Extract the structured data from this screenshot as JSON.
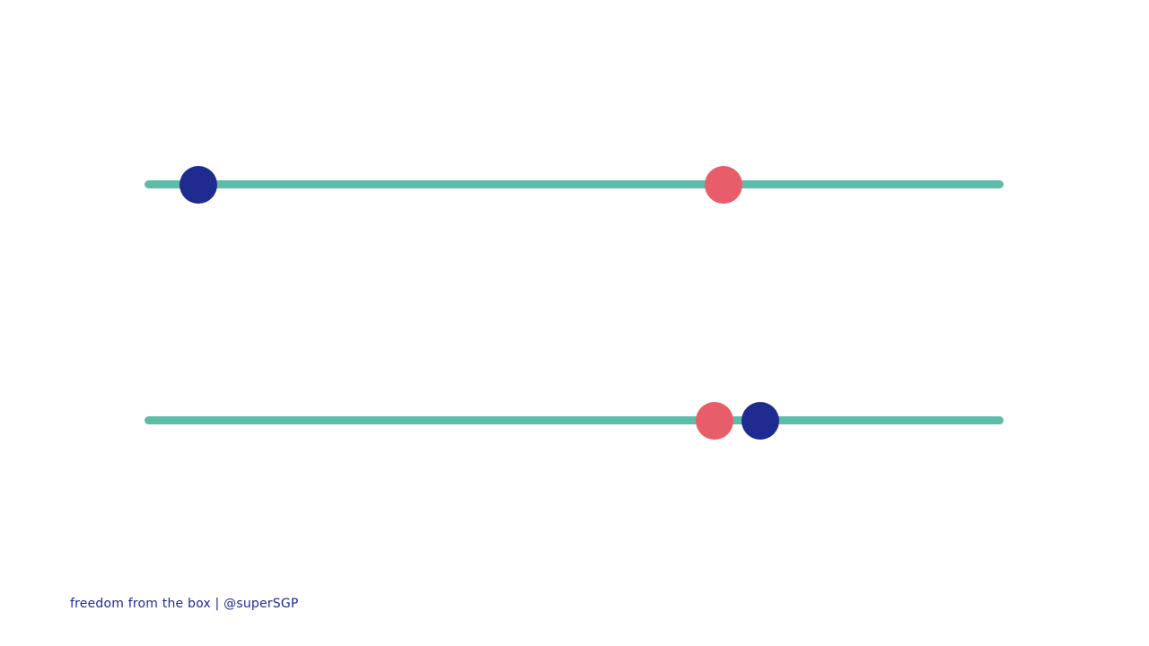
{
  "colors": {
    "track": "#5dbca8",
    "blue": "#1f2b8e",
    "coral": "#e85d6a",
    "footer_text": "#1f2b8e"
  },
  "sliders": [
    {
      "name": "top",
      "markers": [
        {
          "color": "blue",
          "value": 0.063
        },
        {
          "color": "coral",
          "value": 0.674
        }
      ]
    },
    {
      "name": "bottom",
      "markers": [
        {
          "color": "coral",
          "value": 0.664
        },
        {
          "color": "blue",
          "value": 0.717
        }
      ]
    }
  ],
  "footer": {
    "text": "freedom from the box | @superSGP"
  }
}
